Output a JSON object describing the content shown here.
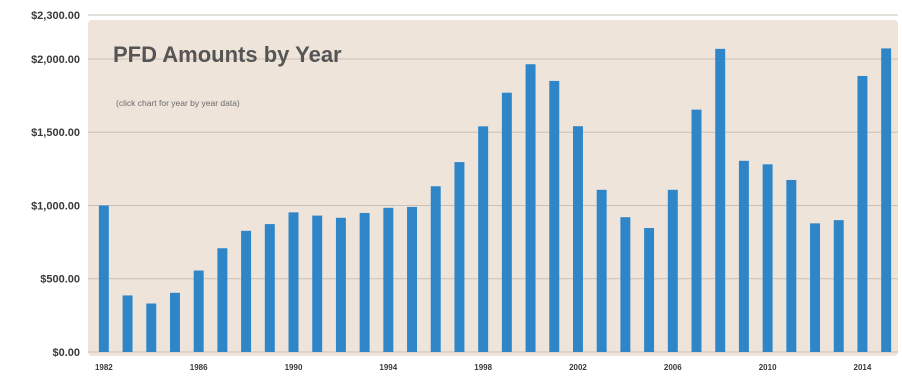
{
  "chart_data": {
    "type": "bar",
    "title": "PFD Amounts by Year",
    "subtitle": "(click chart for year by year data)",
    "xlabel": "",
    "ylabel": "",
    "ylim": [
      0,
      2300
    ],
    "y_ticks": [
      0,
      500,
      1000,
      1500,
      2000,
      2300
    ],
    "y_tick_labels": [
      "$0.00",
      "$500.00",
      "$1,000.00",
      "$1,500.00",
      "$2,000.00",
      "$2,300.00"
    ],
    "x_tick_labels": [
      {
        "index": 0,
        "label": "1982"
      },
      {
        "index": 4,
        "label": "1986"
      },
      {
        "index": 8,
        "label": "1990"
      },
      {
        "index": 12,
        "label": "1994"
      },
      {
        "index": 16,
        "label": "1998"
      },
      {
        "index": 20,
        "label": "2002"
      },
      {
        "index": 24,
        "label": "2006"
      },
      {
        "index": 28,
        "label": "2010"
      },
      {
        "index": 32,
        "label": "2014"
      }
    ],
    "categories": [
      "1982",
      "1983",
      "1984",
      "1985",
      "1986",
      "1987",
      "1988",
      "1989",
      "1990",
      "1991",
      "1992",
      "1993",
      "1994",
      "1995",
      "1996",
      "1997",
      "1998",
      "1999",
      "2000",
      "2001",
      "2002",
      "2003",
      "2004",
      "2005",
      "2006",
      "2007",
      "2008",
      "2009",
      "2010",
      "2011",
      "2012",
      "2013",
      "2014",
      "2015"
    ],
    "values": [
      1000,
      386,
      331,
      404,
      556,
      708,
      827,
      873,
      953,
      931,
      916,
      949,
      984,
      990,
      1131,
      1296,
      1540,
      1770,
      1964,
      1850,
      1541,
      1107,
      920,
      846,
      1107,
      1654,
      2069,
      1305,
      1281,
      1174,
      878,
      900,
      1884,
      2072
    ],
    "bar_color": "#2e86c8",
    "panel_color": "#efe4da",
    "grid": true
  }
}
